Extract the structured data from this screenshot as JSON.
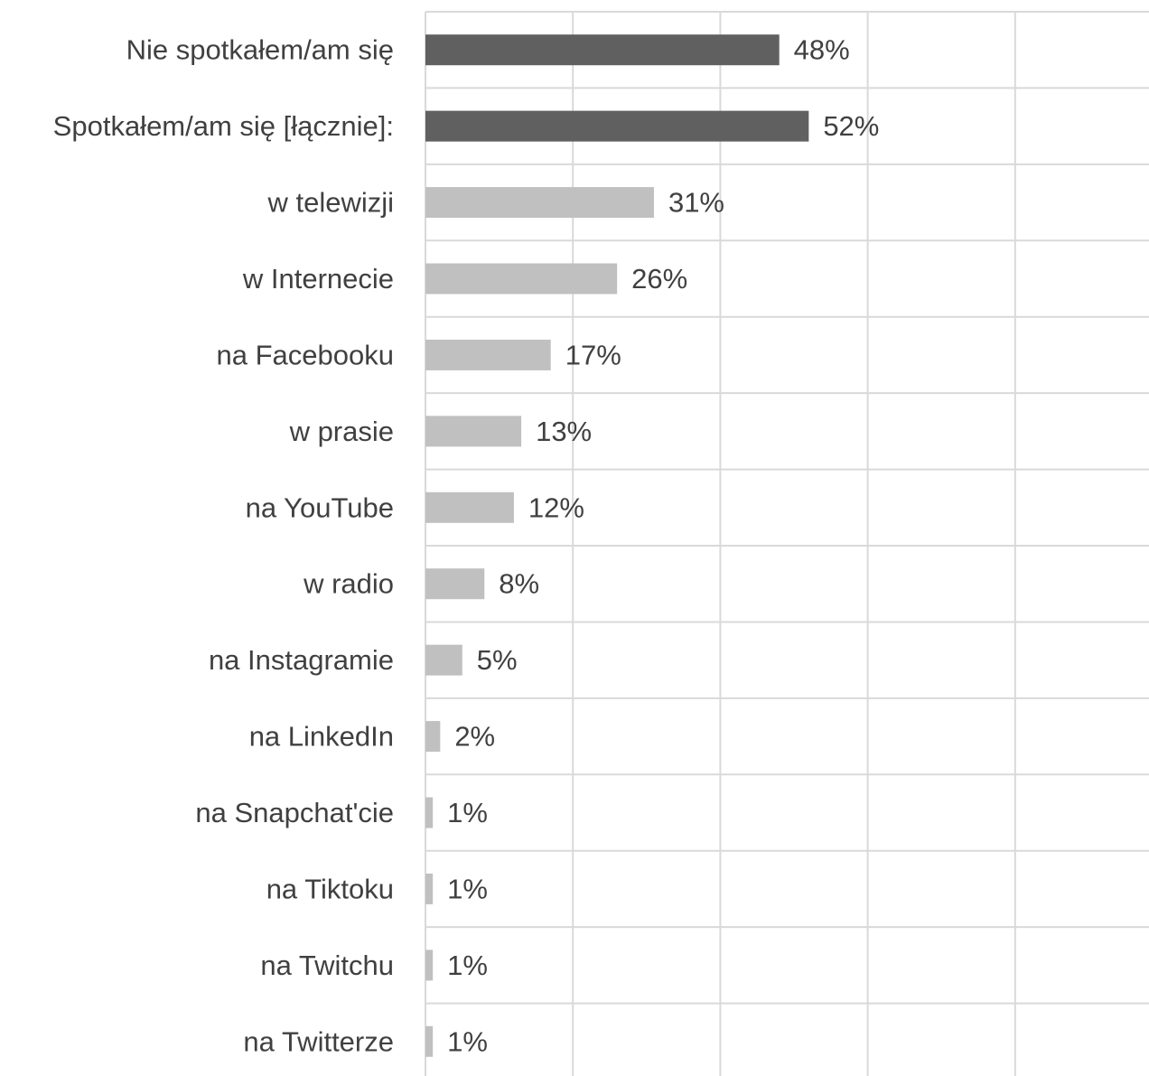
{
  "chart_data": {
    "type": "bar",
    "orientation": "horizontal",
    "categories": [
      "Nie spotkałem/am się",
      "Spotkałem/am się [łącznie]:",
      "w telewizji",
      "w Internecie",
      "na Facebooku",
      "w prasie",
      "na YouTube",
      "w radio",
      "na Instagramie",
      "na LinkedIn",
      "na Snapchat'cie",
      "na Tiktoku",
      "na Twitchu",
      "na Twitterze"
    ],
    "values": [
      48,
      52,
      31,
      26,
      17,
      13,
      12,
      8,
      5,
      2,
      1,
      1,
      1,
      1
    ],
    "value_labels": [
      "48%",
      "52%",
      "31%",
      "26%",
      "17%",
      "13%",
      "12%",
      "8%",
      "5%",
      "2%",
      "1%",
      "1%",
      "1%",
      "1%"
    ],
    "colors": [
      "#606060",
      "#606060",
      "#c0c0c0",
      "#c0c0c0",
      "#c0c0c0",
      "#c0c0c0",
      "#c0c0c0",
      "#c0c0c0",
      "#c0c0c0",
      "#c0c0c0",
      "#c0c0c0",
      "#c0c0c0",
      "#c0c0c0",
      "#c0c0c0"
    ],
    "xlim": [
      0,
      100
    ],
    "grid": true,
    "title": "",
    "xlabel": "",
    "ylabel": ""
  }
}
